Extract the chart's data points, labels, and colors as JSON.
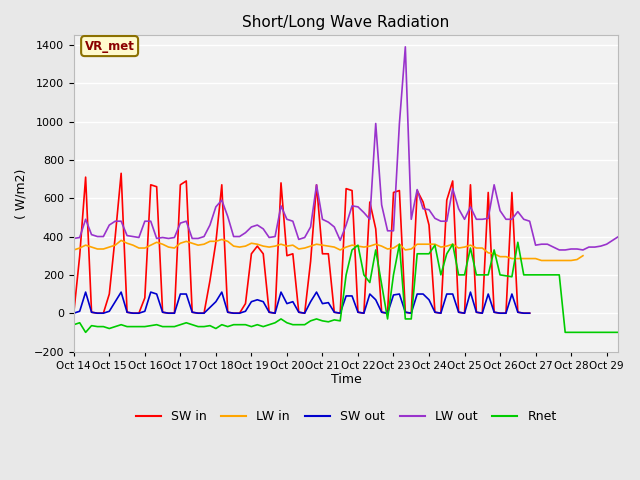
{
  "title": "Short/Long Wave Radiation",
  "xlabel": "Time",
  "ylabel": "( W/m2)",
  "ylim": [
    -200,
    1450
  ],
  "yticks": [
    -200,
    0,
    200,
    400,
    600,
    800,
    1000,
    1200,
    1400
  ],
  "fig_facecolor": "#e8e8e8",
  "ax_facecolor": "#f2f2f2",
  "annotation_text": "VR_met",
  "annotation_color": "#8b0000",
  "annotation_bg": "#fffacd",
  "annotation_edge": "#8b7000",
  "legend_entries": [
    "SW in",
    "LW in",
    "SW out",
    "LW out",
    "Rnet"
  ],
  "line_colors": {
    "SW in": "#ff0000",
    "LW in": "#ffa500",
    "SW out": "#0000cd",
    "LW out": "#9933cc",
    "Rnet": "#00cc00"
  },
  "xtick_labels": [
    "Oct 14",
    "Oct 15",
    "Oct 16",
    "Oct 17",
    "Oct 18",
    "Oct 19",
    "Oct 20",
    "Oct 21",
    "Oct 22",
    "Oct 23",
    "Oct 24",
    "Oct 25",
    "Oct 26",
    "Oct 27",
    "Oct 28",
    "Oct 29"
  ],
  "xtick_positions": [
    0,
    6,
    12,
    18,
    24,
    30,
    36,
    42,
    48,
    54,
    60,
    66,
    72,
    78,
    84,
    90
  ],
  "SW_in": [
    0,
    300,
    710,
    5,
    0,
    0,
    100,
    400,
    730,
    5,
    0,
    0,
    80,
    670,
    660,
    5,
    0,
    0,
    670,
    690,
    5,
    0,
    0,
    170,
    370,
    670,
    5,
    0,
    0,
    50,
    310,
    350,
    310,
    5,
    0,
    680,
    300,
    310,
    5,
    0,
    270,
    670,
    310,
    310,
    5,
    0,
    650,
    640,
    5,
    0,
    580,
    440,
    5,
    0,
    630,
    640,
    5,
    0,
    640,
    580,
    460,
    5,
    0,
    590,
    690,
    5,
    0,
    670,
    5,
    0,
    630,
    5,
    0,
    0,
    630,
    5,
    0,
    0
  ],
  "LW_in": [
    330,
    340,
    355,
    345,
    335,
    335,
    345,
    355,
    380,
    365,
    355,
    340,
    340,
    355,
    370,
    360,
    345,
    340,
    365,
    375,
    365,
    355,
    360,
    375,
    375,
    385,
    375,
    350,
    345,
    350,
    365,
    360,
    350,
    345,
    350,
    360,
    350,
    355,
    335,
    340,
    350,
    360,
    355,
    350,
    345,
    330,
    345,
    355,
    350,
    345,
    350,
    360,
    350,
    335,
    340,
    360,
    330,
    335,
    360,
    360,
    360,
    360,
    345,
    350,
    360,
    340,
    345,
    355,
    340,
    340,
    315,
    310,
    295,
    295,
    285,
    285,
    285,
    285,
    285,
    275,
    275,
    275,
    275,
    275,
    275,
    280,
    300
  ],
  "SW_out": [
    0,
    10,
    110,
    5,
    0,
    0,
    10,
    60,
    110,
    5,
    0,
    0,
    10,
    110,
    100,
    5,
    0,
    0,
    100,
    100,
    5,
    0,
    0,
    30,
    60,
    110,
    5,
    0,
    0,
    10,
    60,
    70,
    60,
    5,
    0,
    110,
    50,
    60,
    5,
    0,
    60,
    110,
    50,
    55,
    5,
    0,
    90,
    90,
    5,
    0,
    100,
    70,
    5,
    0,
    95,
    100,
    5,
    0,
    100,
    100,
    70,
    5,
    0,
    100,
    100,
    5,
    0,
    110,
    5,
    0,
    100,
    5,
    0,
    0,
    100,
    5,
    0,
    0
  ],
  "LW_out": [
    390,
    395,
    490,
    410,
    400,
    400,
    460,
    480,
    480,
    405,
    400,
    395,
    480,
    480,
    390,
    395,
    390,
    395,
    470,
    480,
    390,
    390,
    400,
    460,
    555,
    590,
    505,
    400,
    400,
    420,
    450,
    460,
    440,
    395,
    400,
    560,
    490,
    480,
    385,
    395,
    450,
    670,
    490,
    475,
    450,
    380,
    460,
    560,
    555,
    525,
    490,
    990,
    565,
    430,
    430,
    990,
    1390,
    490,
    645,
    545,
    540,
    495,
    480,
    480,
    650,
    545,
    490,
    555,
    490,
    490,
    495,
    670,
    535,
    490,
    490,
    530,
    490,
    480,
    355,
    360,
    360,
    345,
    330,
    330,
    335,
    335,
    330,
    345,
    345,
    350,
    360,
    380,
    400
  ],
  "Rnet": [
    -60,
    -50,
    -100,
    -65,
    -70,
    -70,
    -80,
    -70,
    -60,
    -70,
    -70,
    -70,
    -70,
    -65,
    -60,
    -70,
    -70,
    -70,
    -60,
    -50,
    -60,
    -70,
    -70,
    -65,
    -80,
    -60,
    -70,
    -60,
    -60,
    -60,
    -70,
    -60,
    -70,
    -60,
    -50,
    -30,
    -50,
    -60,
    -60,
    -60,
    -40,
    -30,
    -40,
    -45,
    -35,
    -40,
    200,
    330,
    355,
    200,
    160,
    330,
    150,
    -30,
    200,
    360,
    -30,
    -30,
    310,
    310,
    310,
    355,
    200,
    310,
    360,
    200,
    200,
    340,
    200,
    200,
    200,
    330,
    200,
    195,
    190,
    370,
    200,
    200,
    200,
    200,
    200,
    200,
    200,
    -100,
    -100,
    -100,
    -100,
    -100,
    -100,
    -100,
    -100,
    -100,
    -100
  ]
}
